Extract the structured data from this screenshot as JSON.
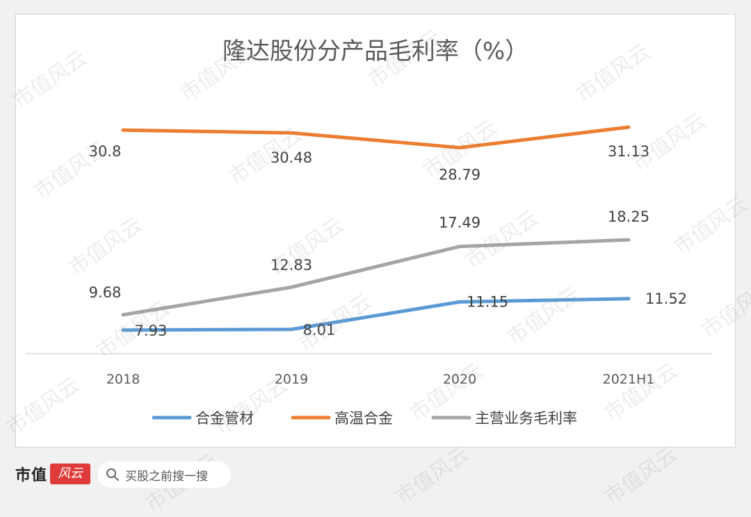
{
  "chart_data": {
    "type": "line",
    "title": "隆达股份分产品毛利率（%）",
    "categories": [
      "2018",
      "2019",
      "2020",
      "2021H1"
    ],
    "ylim": [
      0,
      38
    ],
    "grid": false,
    "legend_position": "bottom",
    "series": [
      {
        "name": "合金管材",
        "color": "#5b9bd5",
        "values": [
          7.93,
          8.01,
          11.15,
          11.52
        ],
        "labels": [
          "7.93",
          "8.01",
          "11.15",
          "11.52"
        ]
      },
      {
        "name": "高温合金",
        "color": "#ed7d31",
        "values": [
          30.8,
          30.48,
          28.79,
          31.13
        ],
        "labels": [
          "30.8",
          "30.48",
          "28.79",
          "31.13"
        ]
      },
      {
        "name": "主营业务毛利率",
        "color": "#a5a5a5",
        "values": [
          9.68,
          12.83,
          17.49,
          18.25
        ],
        "labels": [
          "9.68",
          "12.83",
          "17.49",
          "18.25"
        ]
      }
    ]
  },
  "footer": {
    "brand_text": "市值",
    "brand_mark": "风云",
    "search_text": "买股之前搜一搜"
  },
  "watermark": "市值风云"
}
